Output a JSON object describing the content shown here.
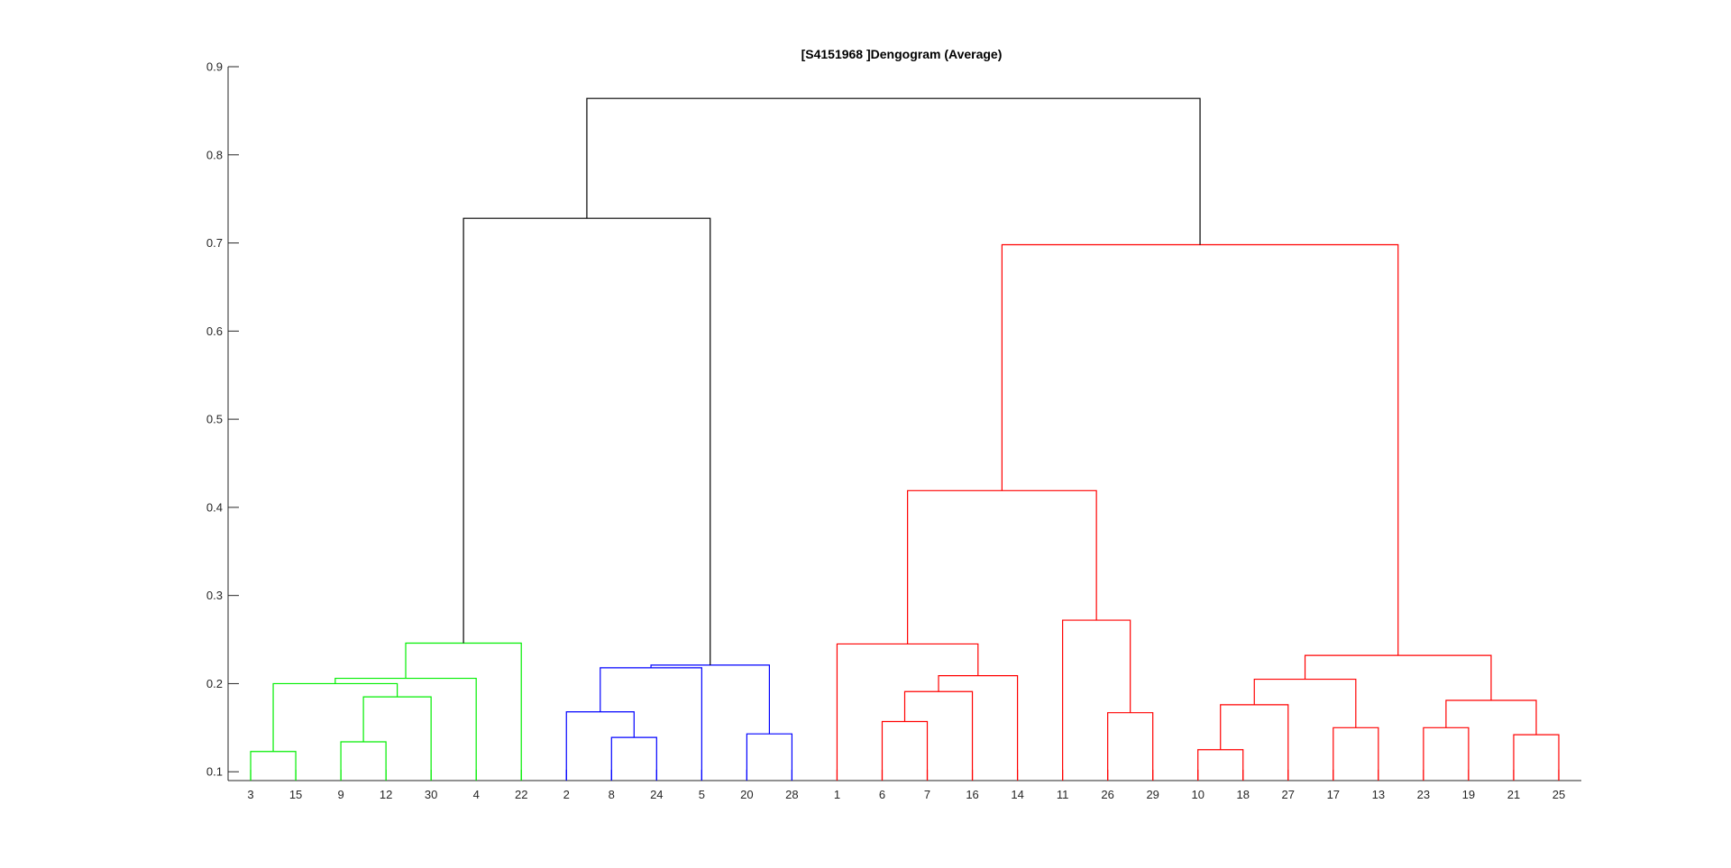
{
  "chart_data": {
    "type": "dendrogram",
    "title": "[S4151968 ]Dengogram (Average)",
    "xlabel": "",
    "ylabel": "",
    "ylim": [
      0.09,
      0.9
    ],
    "y_ticks": [
      0.1,
      0.2,
      0.3,
      0.4,
      0.5,
      0.6,
      0.7,
      0.8,
      0.9
    ],
    "y_tick_labels": [
      "0.1",
      "0.2",
      "0.3",
      "0.4",
      "0.5",
      "0.6",
      "0.7",
      "0.8",
      "0.9"
    ],
    "grid": false,
    "leaf_order": [
      "3",
      "15",
      "9",
      "12",
      "30",
      "4",
      "22",
      "2",
      "8",
      "24",
      "5",
      "20",
      "28",
      "1",
      "6",
      "7",
      "16",
      "14",
      "11",
      "26",
      "29",
      "10",
      "18",
      "27",
      "17",
      "13",
      "23",
      "19",
      "21",
      "25"
    ],
    "colors": {
      "green": "#00ee00",
      "blue": "#0000ff",
      "red": "#ff0000",
      "black": "#000000",
      "axis": "#262626"
    },
    "links": [
      {
        "l": 0,
        "r": 1,
        "h": 0.123,
        "c": "green"
      },
      {
        "l": 2,
        "r": 3,
        "h": 0.134,
        "c": "green"
      },
      {
        "l": 31,
        "r": 4,
        "h": 0.185,
        "c": "green"
      },
      {
        "l": 30,
        "r": 32,
        "h": 0.2,
        "c": "green"
      },
      {
        "l": 33,
        "r": 5,
        "h": 0.206,
        "c": "green"
      },
      {
        "l": 34,
        "r": 6,
        "h": 0.246,
        "c": "green"
      },
      {
        "l": 8,
        "r": 9,
        "h": 0.139,
        "c": "blue"
      },
      {
        "l": 7,
        "r": 36,
        "h": 0.168,
        "c": "blue"
      },
      {
        "l": 37,
        "r": 10,
        "h": 0.218,
        "c": "blue"
      },
      {
        "l": 11,
        "r": 12,
        "h": 0.143,
        "c": "blue"
      },
      {
        "l": 38,
        "r": 39,
        "h": 0.221,
        "c": "blue"
      },
      {
        "l": 35,
        "r": 40,
        "h": 0.728,
        "c": "black"
      },
      {
        "l": 14,
        "r": 15,
        "h": 0.157,
        "c": "red"
      },
      {
        "l": 42,
        "r": 16,
        "h": 0.191,
        "c": "red"
      },
      {
        "l": 43,
        "r": 17,
        "h": 0.209,
        "c": "red"
      },
      {
        "l": 13,
        "r": 44,
        "h": 0.245,
        "c": "red"
      },
      {
        "l": 19,
        "r": 20,
        "h": 0.167,
        "c": "red"
      },
      {
        "l": 18,
        "r": 46,
        "h": 0.272,
        "c": "red"
      },
      {
        "l": 45,
        "r": 47,
        "h": 0.419,
        "c": "red"
      },
      {
        "l": 21,
        "r": 22,
        "h": 0.125,
        "c": "red"
      },
      {
        "l": 49,
        "r": 23,
        "h": 0.176,
        "c": "red"
      },
      {
        "l": 24,
        "r": 25,
        "h": 0.15,
        "c": "red"
      },
      {
        "l": 50,
        "r": 51,
        "h": 0.205,
        "c": "red"
      },
      {
        "l": 26,
        "r": 27,
        "h": 0.15,
        "c": "red"
      },
      {
        "l": 28,
        "r": 29,
        "h": 0.142,
        "c": "red"
      },
      {
        "l": 53,
        "r": 54,
        "h": 0.181,
        "c": "red"
      },
      {
        "l": 52,
        "r": 55,
        "h": 0.232,
        "c": "red"
      },
      {
        "l": 48,
        "r": 56,
        "h": 0.698,
        "c": "red"
      },
      {
        "l": 41,
        "r": 57,
        "h": 0.864,
        "c": "black"
      }
    ],
    "leaf_colors": [
      "green",
      "green",
      "green",
      "green",
      "green",
      "green",
      "green",
      "blue",
      "blue",
      "blue",
      "blue",
      "blue",
      "blue",
      "red",
      "red",
      "red",
      "red",
      "red",
      "red",
      "red",
      "red",
      "red",
      "red",
      "red",
      "red",
      "red",
      "red",
      "red",
      "red",
      "red"
    ]
  }
}
